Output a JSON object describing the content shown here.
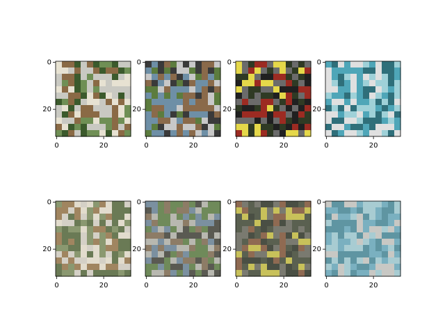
{
  "figure": {
    "background": "#ffffff",
    "layout": "2 rows x 4 columns image grid (top: original images, bottom: reconstructed/blurred versions)",
    "panels": [
      {
        "row": 0,
        "col": 0,
        "subject": "ostrich-head",
        "colors": [
          "#6f8f55",
          "#c9c9c2",
          "#8a6a45",
          "#e7e2d2",
          "#3b5a2c"
        ],
        "xticks": [
          "0",
          "20"
        ],
        "yticks": [
          "0",
          "20"
        ]
      },
      {
        "row": 0,
        "col": 1,
        "subject": "horse",
        "colors": [
          "#5c7c3e",
          "#c8c8c8",
          "#3a3a3a",
          "#8a6a4a",
          "#6e8fa6"
        ],
        "xticks": [
          "0",
          "20"
        ],
        "yticks": [
          "0",
          "20"
        ]
      },
      {
        "row": 0,
        "col": 2,
        "subject": "yellow-truck",
        "colors": [
          "#2f3a24",
          "#e5d84a",
          "#6b6b6b",
          "#9c2b22",
          "#202020"
        ],
        "xticks": [
          "0",
          "20"
        ],
        "yticks": [
          "0",
          "20"
        ]
      },
      {
        "row": 0,
        "col": 3,
        "subject": "boat-on-water",
        "colors": [
          "#4fa6b8",
          "#9fd1d8",
          "#e0e0e0",
          "#2f6f7a"
        ],
        "xticks": [
          "0",
          "20"
        ],
        "yticks": [
          "0",
          "20"
        ]
      },
      {
        "row": 1,
        "col": 0,
        "subject": "ostrich-head-reconstruction",
        "colors": [
          "#8a9870",
          "#d4d0c6",
          "#a08560",
          "#e2dccd",
          "#6a7a55"
        ],
        "xticks": [
          "0",
          "20"
        ],
        "yticks": [
          "0",
          "20"
        ]
      },
      {
        "row": 1,
        "col": 1,
        "subject": "horse-reconstruction",
        "colors": [
          "#6f8a5a",
          "#b8b8b0",
          "#5a5a52",
          "#8d7c66",
          "#7b90a0"
        ],
        "xticks": [
          "0",
          "20"
        ],
        "yticks": [
          "0",
          "20"
        ]
      },
      {
        "row": 1,
        "col": 2,
        "subject": "truck-reconstruction",
        "colors": [
          "#5a6050",
          "#c8c15a",
          "#7a7a70",
          "#8f6a52",
          "#4a4f44"
        ],
        "xticks": [
          "0",
          "20"
        ],
        "yticks": [
          "0",
          "20"
        ]
      },
      {
        "row": 1,
        "col": 3,
        "subject": "boat-reconstruction",
        "colors": [
          "#7ab0c0",
          "#a8ccd2",
          "#c8c8c4",
          "#5f95a2"
        ],
        "xticks": [
          "0",
          "20"
        ],
        "yticks": [
          "0",
          "20"
        ]
      }
    ]
  }
}
